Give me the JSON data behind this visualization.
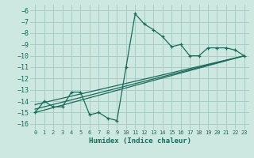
{
  "xlabel": "Humidex (Indice chaleur)",
  "bg_color": "#cce8e0",
  "grid_color": "#a8ccc4",
  "line_color": "#1a6b5a",
  "xlim": [
    -0.5,
    23.5
  ],
  "ylim": [
    -16.5,
    -5.5
  ],
  "xticks": [
    0,
    1,
    2,
    3,
    4,
    5,
    6,
    7,
    8,
    9,
    10,
    11,
    12,
    13,
    14,
    15,
    16,
    17,
    18,
    19,
    20,
    21,
    22,
    23
  ],
  "yticks": [
    -6,
    -7,
    -8,
    -9,
    -10,
    -11,
    -12,
    -13,
    -14,
    -15,
    -16
  ],
  "main_series": {
    "x": [
      0,
      1,
      2,
      3,
      4,
      5,
      6,
      7,
      8,
      9,
      10,
      11,
      12,
      13,
      14,
      15,
      16,
      17,
      18,
      19,
      20,
      21,
      22,
      23
    ],
    "y": [
      -15.0,
      -14.0,
      -14.5,
      -14.5,
      -13.2,
      -13.2,
      -15.2,
      -15.0,
      -15.5,
      -15.7,
      -11.0,
      -6.3,
      -7.2,
      -7.7,
      -8.3,
      -9.2,
      -9.0,
      -10.0,
      -10.0,
      -9.3,
      -9.3,
      -9.3,
      -9.5,
      -10.0
    ]
  },
  "trend_lines": [
    {
      "x": [
        0,
        23
      ],
      "y": [
        -15.0,
        -10.0
      ]
    },
    {
      "x": [
        0,
        23
      ],
      "y": [
        -14.7,
        -10.0
      ]
    },
    {
      "x": [
        0,
        23
      ],
      "y": [
        -14.3,
        -10.0
      ]
    }
  ]
}
